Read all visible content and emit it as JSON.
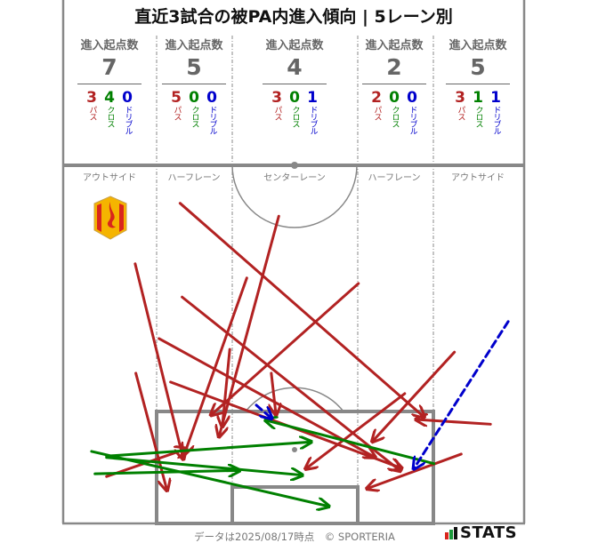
{
  "title": "直近3試合の被PA内進入傾向 | 5レーン別",
  "lanes": [
    {
      "name": "アウトサイド",
      "label": "進入起点数",
      "total": "7",
      "pass": "3",
      "cross": "4",
      "dribble": "0"
    },
    {
      "name": "ハーフレーン",
      "label": "進入起点数",
      "total": "5",
      "pass": "5",
      "cross": "0",
      "dribble": "0"
    },
    {
      "name": "センターレーン",
      "label": "進入起点数",
      "total": "4",
      "pass": "3",
      "cross": "0",
      "dribble": "1"
    },
    {
      "name": "ハーフレーン",
      "label": "進入起点数",
      "total": "2",
      "pass": "2",
      "cross": "0",
      "dribble": "0"
    },
    {
      "name": "アウトサイド",
      "label": "進入起点数",
      "total": "5",
      "pass": "3",
      "cross": "1",
      "dribble": "1"
    }
  ],
  "legend": {
    "pass": "パス",
    "cross": "クロス",
    "dribble": "ドリブル"
  },
  "colors": {
    "pass": "#b22222",
    "cross": "#008000",
    "dribble": "#0000cc",
    "lines": "#888888"
  },
  "pitch_units": "meters (x from left touchline, y from goal line)",
  "arrows": {
    "pass": [
      [
        [
          17.3,
          47.1
        ],
        [
          53.2,
          15.6
        ]
      ],
      [
        [
          10.7,
          38.2
        ],
        [
          17.8,
          9.4
        ]
      ],
      [
        [
          10.8,
          22.1
        ],
        [
          15.4,
          4.8
        ]
      ],
      [
        [
          27.1,
          36.1
        ],
        [
          17.9,
          10.1
        ]
      ],
      [
        [
          17.6,
          33.3
        ],
        [
          49.7,
          7.7
        ]
      ],
      [
        [
          14.2,
          27.2
        ],
        [
          46.0,
          9.7
        ]
      ],
      [
        [
          15.9,
          20.8
        ],
        [
          49.9,
          8.1
        ]
      ],
      [
        [
          43.5,
          35.3
        ],
        [
          21.8,
          15.9
        ]
      ],
      [
        [
          50.3,
          19.1
        ],
        [
          35.7,
          8.0
        ]
      ],
      [
        [
          57.6,
          25.2
        ],
        [
          45.5,
          12.0
        ]
      ],
      [
        [
          62.9,
          14.6
        ],
        [
          51.9,
          15.3
        ]
      ],
      [
        [
          58.6,
          10.2
        ],
        [
          44.7,
          5.1
        ]
      ],
      [
        [
          6.5,
          6.9
        ],
        [
          18.3,
          11.0
        ]
      ],
      [
        [
          30.7,
          22.1
        ],
        [
          31.4,
          15.9
        ]
      ],
      [
        [
          31.8,
          45.2
        ],
        [
          23.0,
          12.7
        ]
      ],
      [
        [
          24.6,
          25.6
        ],
        [
          23.5,
          14.2
        ]
      ]
    ],
    "cross": [
      [
        [
          4.3,
          10.6
        ],
        [
          39.2,
          2.5
        ]
      ],
      [
        [
          6.5,
          9.9
        ],
        [
          36.6,
          12.0
        ]
      ],
      [
        [
          4.8,
          7.3
        ],
        [
          26.1,
          7.8
        ]
      ],
      [
        [
          6.5,
          9.7
        ],
        [
          35.3,
          7.1
        ]
      ],
      [
        [
          54.6,
          8.8
        ],
        [
          29.8,
          15.2
        ]
      ]
    ],
    "dribble": [
      [
        [
          65.5,
          29.7
        ],
        [
          51.6,
          8.0
        ]
      ],
      [
        [
          28.5,
          17.4
        ],
        [
          30.8,
          15.4
        ]
      ]
    ]
  },
  "team_logo": "flame-shield-crest",
  "footer": {
    "note": "データは2025/08/17時点　© SPORTERIA",
    "brand": "STATS"
  }
}
